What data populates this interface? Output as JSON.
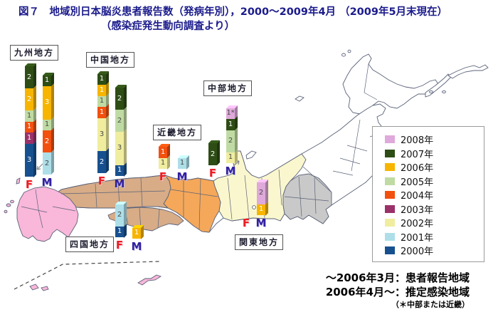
{
  "title": {
    "line1": "図７　地域別日本脳炎患者報告数（発病年別），2000〜2009年4月 （2009年5月末現在）",
    "line2": "（感染症発生動向調査より）"
  },
  "legend": {
    "items": [
      {
        "label": "2008年",
        "color": "#DFA9DB"
      },
      {
        "label": "2007年",
        "color": "#2E4D15"
      },
      {
        "label": "2006年",
        "color": "#F7B500"
      },
      {
        "label": "2005年",
        "color": "#BFDBA3"
      },
      {
        "label": "2004年",
        "color": "#F2500F"
      },
      {
        "label": "2003年",
        "color": "#9A3169"
      },
      {
        "label": "2002年",
        "color": "#F0ED9F"
      },
      {
        "label": "2001年",
        "color": "#AEDFE9"
      },
      {
        "label": "2000年",
        "color": "#17508F"
      }
    ]
  },
  "footnotes": {
    "line1": "〜2006年3月：患者報告地域",
    "line2": "2006年4月〜：推定感染地域",
    "line3": "（＊中部または近畿）"
  },
  "sex_labels": {
    "female": "F",
    "male": "M"
  },
  "map_colors": {
    "kyushu": "#F9B7D9",
    "chugoku": "#D7AC87",
    "shikoku": "#D7AC87",
    "kinki": "#F5A85A",
    "chubu": "#FAF7CE",
    "kanto": "#C9C9C9",
    "other": "#FFFFFF"
  },
  "chart_data": {
    "type": "bar",
    "stacked": true,
    "orientation": "vertical",
    "title": "図７　地域別日本脳炎患者報告数（発病年別），2000〜2009年4月（2009年5月末現在）（感染症発生動向調査より）",
    "legend_years": [
      "2008年",
      "2007年",
      "2006年",
      "2005年",
      "2004年",
      "2003年",
      "2002年",
      "2001年",
      "2000年"
    ],
    "year_colors": {
      "2008": "#DFA9DB",
      "2007": "#2E4D15",
      "2006": "#F7B500",
      "2005": "#BFDBA3",
      "2004": "#F2500F",
      "2003": "#9A3169",
      "2002": "#F0ED9F",
      "2001": "#AEDFE9",
      "2000": "#17508F"
    },
    "regions": [
      {
        "name": "九州地方",
        "bars": {
          "F": [
            [
              "2007",
              "2"
            ],
            [
              "2006",
              "2"
            ],
            [
              "2005",
              "1"
            ],
            [
              "2004",
              "1"
            ],
            [
              "2003",
              "1"
            ],
            [
              "2000",
              "3"
            ]
          ],
          "M": [
            [
              "2007",
              "1"
            ],
            [
              "2006",
              "3"
            ],
            [
              "2005",
              "1"
            ],
            [
              "2004",
              "2"
            ],
            [
              "2001",
              "2"
            ]
          ]
        }
      },
      {
        "name": "中国地方",
        "bars": {
          "F": [
            [
              "2007",
              "1"
            ],
            [
              "2006",
              "1"
            ],
            [
              "2005",
              "1"
            ],
            [
              "2004",
              "1"
            ],
            [
              "2002",
              "3"
            ],
            [
              "2000",
              "2"
            ]
          ],
          "M": [
            [
              "2007",
              "2"
            ],
            [
              "2005",
              "2"
            ],
            [
              "2002",
              "3"
            ],
            [
              "2000",
              "1"
            ]
          ]
        }
      },
      {
        "name": "近畿地方",
        "bars": {
          "F": [
            [
              "2004",
              "1"
            ],
            [
              "2002",
              "1"
            ]
          ],
          "M": [
            [
              "2001",
              "1"
            ]
          ]
        }
      },
      {
        "name": "中部地方",
        "bars": {
          "F": [
            [
              "2007",
              "2"
            ]
          ],
          "M": [
            [
              "2008",
              "1*"
            ],
            [
              "2007",
              "1"
            ],
            [
              "2005",
              "2"
            ],
            [
              "2002",
              "1"
            ]
          ]
        }
      },
      {
        "name": "四国地方",
        "bars": {
          "F": [
            [
              "2001",
              "2"
            ],
            [
              "2000",
              "1"
            ]
          ],
          "M": [
            [
              "2006",
              "1"
            ]
          ]
        }
      },
      {
        "name": "関東地方",
        "bars": {
          "F": [],
          "M": [
            [
              "2008",
              "2"
            ],
            [
              "2006",
              "1"
            ]
          ]
        }
      }
    ]
  }
}
